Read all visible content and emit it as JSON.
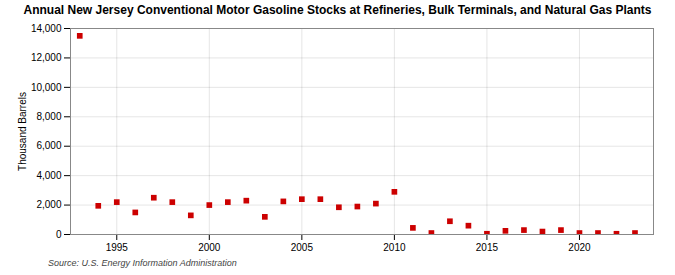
{
  "chart_data": {
    "type": "scatter",
    "title": "Annual New Jersey Conventional Motor Gasoline Stocks at Refineries, Bulk Terminals, and Natural Gas Plants",
    "ylabel": "Thousand Barrels",
    "source": "Source: U.S. Energy Information Administration",
    "x": [
      1993,
      1994,
      1995,
      1996,
      1997,
      1998,
      1999,
      2000,
      2001,
      2002,
      2003,
      2004,
      2005,
      2006,
      2007,
      2008,
      2009,
      2010,
      2011,
      2012,
      2013,
      2014,
      2015,
      2016,
      2017,
      2018,
      2019,
      2020,
      2021,
      2022,
      2023
    ],
    "values": [
      13500,
      1950,
      2200,
      1500,
      2500,
      2200,
      1300,
      2000,
      2200,
      2300,
      1200,
      2250,
      2400,
      2400,
      1850,
      1900,
      2100,
      2900,
      450,
      100,
      900,
      600,
      50,
      250,
      300,
      200,
      300,
      100,
      100,
      50,
      100
    ],
    "color": "#cc0000",
    "marker": "square",
    "xlim": [
      1992.5,
      2024
    ],
    "xticks": [
      1995,
      2000,
      2005,
      2010,
      2015,
      2020
    ],
    "ylim": [
      0,
      14000
    ],
    "yticks": [
      0,
      {
        "value": 2000,
        "label": "2,000"
      },
      {
        "value": 4000,
        "label": "4,000"
      },
      {
        "value": 6000,
        "label": "6,000"
      },
      {
        "value": 8000,
        "label": "8,000"
      },
      {
        "value": 10000,
        "label": "10,000"
      },
      {
        "value": 12000,
        "label": "12,000"
      },
      {
        "value": 14000,
        "label": "14,000"
      }
    ],
    "grid": true
  }
}
